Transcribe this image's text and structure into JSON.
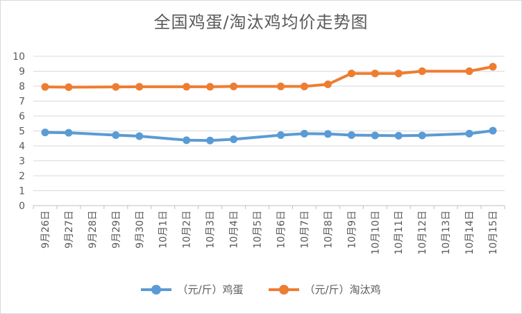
{
  "chart_data": {
    "type": "line",
    "title": "全国鸡蛋/淘汰鸡均价走势图",
    "categories": [
      "9月26日",
      "9月27日",
      "9月28日",
      "9月29日",
      "9月30日",
      "10月1日",
      "10月2日",
      "10月3日",
      "10月4日",
      "10月5日",
      "10月6日",
      "10月7日",
      "10月8日",
      "10月9日",
      "10月10日",
      "10月11日",
      "10月12日",
      "10月13日",
      "10月14日",
      "10月15日"
    ],
    "series": [
      {
        "name": "（元/斤）鸡蛋",
        "color": "#5B9BD5",
        "values": [
          4.9,
          4.88,
          null,
          4.72,
          4.65,
          null,
          4.38,
          4.36,
          4.44,
          null,
          4.72,
          4.82,
          4.8,
          4.72,
          4.7,
          4.68,
          4.7,
          null,
          4.82,
          5.02
        ]
      },
      {
        "name": "（元/斤）淘汰鸡",
        "color": "#ED7D31",
        "values": [
          7.95,
          7.93,
          null,
          7.95,
          7.96,
          null,
          7.96,
          7.96,
          7.98,
          null,
          7.98,
          7.98,
          8.12,
          8.85,
          8.85,
          8.85,
          9.0,
          null,
          9.0,
          9.3
        ]
      }
    ],
    "ylim": [
      0,
      10
    ],
    "yticks": [
      0,
      1,
      2,
      3,
      4,
      5,
      6,
      7,
      8,
      9,
      10
    ],
    "grid": true,
    "legend_position": "bottom",
    "xlabel": "",
    "ylabel": ""
  }
}
